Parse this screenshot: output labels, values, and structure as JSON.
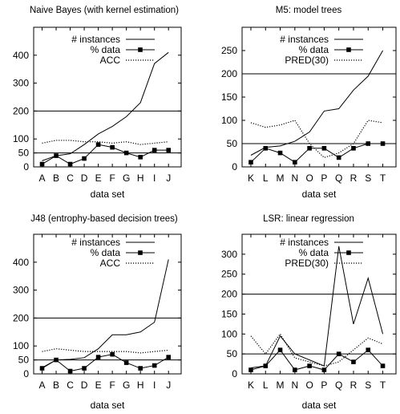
{
  "chart_data": [
    {
      "type": "line",
      "title": "Naive Bayes (with kernel estimation)",
      "xlabel": "data set",
      "ylim": [
        0,
        500
      ],
      "yticks": [
        0,
        50,
        100,
        200,
        300,
        400
      ],
      "categories": [
        "A",
        "B",
        "C",
        "D",
        "E",
        "F",
        "G",
        "H",
        "I",
        "J"
      ],
      "reference_lines": [
        50,
        200
      ],
      "series": [
        {
          "name": "# instances",
          "style": "solid",
          "values": [
            22,
            40,
            47,
            80,
            118,
            145,
            180,
            230,
            370,
            410
          ]
        },
        {
          "name": "% data",
          "style": "solid-square",
          "values": [
            10,
            40,
            10,
            30,
            80,
            70,
            50,
            35,
            60,
            60
          ]
        },
        {
          "name": "ACC",
          "style": "dotted",
          "values": [
            85,
            95,
            95,
            90,
            90,
            85,
            90,
            80,
            85,
            90
          ]
        }
      ]
    },
    {
      "type": "line",
      "title": "M5: model trees",
      "xlabel": "data set",
      "ylim": [
        0,
        300
      ],
      "yticks": [
        0,
        50,
        100,
        150,
        200,
        250
      ],
      "categories": [
        "K",
        "L",
        "M",
        "N",
        "O",
        "P",
        "Q",
        "R",
        "S",
        "T"
      ],
      "reference_lines": [
        50,
        200
      ],
      "series": [
        {
          "name": "# instances",
          "style": "solid",
          "values": [
            25,
            42,
            45,
            55,
            75,
            120,
            125,
            165,
            195,
            250
          ]
        },
        {
          "name": "% data",
          "style": "solid-square",
          "values": [
            10,
            40,
            30,
            10,
            40,
            40,
            20,
            40,
            50,
            50
          ]
        },
        {
          "name": "PRED(30)",
          "style": "dotted",
          "values": [
            95,
            85,
            90,
            100,
            50,
            20,
            30,
            50,
            100,
            95
          ]
        }
      ]
    },
    {
      "type": "line",
      "title": "J48 (entrophy-based decision trees)",
      "xlabel": "data set",
      "ylim": [
        0,
        500
      ],
      "yticks": [
        0,
        50,
        100,
        200,
        300,
        400
      ],
      "categories": [
        "A",
        "B",
        "C",
        "D",
        "E",
        "F",
        "G",
        "H",
        "I",
        "J"
      ],
      "reference_lines": [
        50,
        200
      ],
      "series": [
        {
          "name": "# instances",
          "style": "solid",
          "values": [
            22,
            50,
            52,
            58,
            90,
            140,
            140,
            150,
            185,
            410
          ]
        },
        {
          "name": "% data",
          "style": "solid-square",
          "values": [
            20,
            50,
            10,
            20,
            60,
            70,
            40,
            20,
            30,
            60
          ]
        },
        {
          "name": "ACC",
          "style": "dotted",
          "values": [
            80,
            90,
            85,
            80,
            80,
            80,
            80,
            75,
            80,
            85
          ]
        }
      ]
    },
    {
      "type": "line",
      "title": "LSR: linear regression",
      "xlabel": "data set",
      "ylim": [
        0,
        350
      ],
      "yticks": [
        0,
        50,
        100,
        150,
        200,
        250,
        300
      ],
      "categories": [
        "K",
        "L",
        "M",
        "N",
        "O",
        "P",
        "Q",
        "R",
        "S",
        "T"
      ],
      "reference_lines": [
        50,
        200
      ],
      "series": [
        {
          "name": "# instances",
          "style": "solid",
          "values": [
            15,
            20,
            95,
            50,
            35,
            20,
            320,
            125,
            240,
            100
          ]
        },
        {
          "name": "% data",
          "style": "solid-square",
          "values": [
            10,
            20,
            60,
            10,
            20,
            10,
            50,
            30,
            60,
            20
          ]
        },
        {
          "name": "PRED(30)",
          "style": "dotted",
          "values": [
            95,
            50,
            100,
            40,
            30,
            20,
            30,
            60,
            90,
            75
          ]
        }
      ]
    }
  ]
}
